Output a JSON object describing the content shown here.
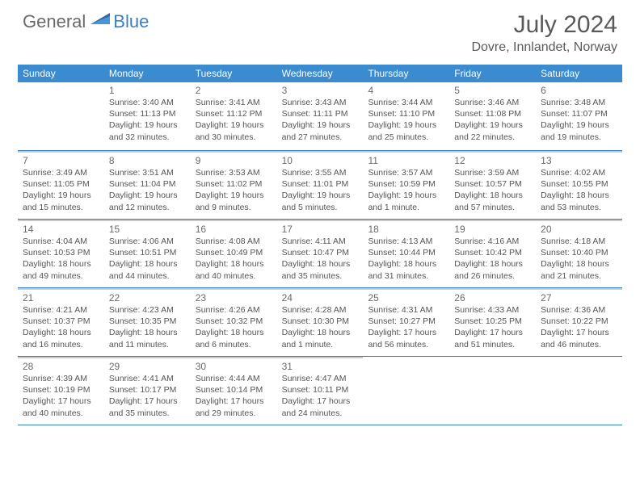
{
  "logo": {
    "general": "General",
    "blue": "Blue"
  },
  "title": "July 2024",
  "location": "Dovre, Innlandet, Norway",
  "days_of_week": [
    "Sunday",
    "Monday",
    "Tuesday",
    "Wednesday",
    "Thursday",
    "Friday",
    "Saturday"
  ],
  "colors": {
    "header_bg": "#3a8bd0",
    "header_text": "#ffffff",
    "row_divider": "#3a7fc4",
    "cell_top": "#c9c9c9",
    "text": "#555555"
  },
  "weeks": [
    [
      {
        "n": "",
        "sr": "",
        "ss": "",
        "dl": ""
      },
      {
        "n": "1",
        "sr": "Sunrise: 3:40 AM",
        "ss": "Sunset: 11:13 PM",
        "dl": "Daylight: 19 hours and 32 minutes."
      },
      {
        "n": "2",
        "sr": "Sunrise: 3:41 AM",
        "ss": "Sunset: 11:12 PM",
        "dl": "Daylight: 19 hours and 30 minutes."
      },
      {
        "n": "3",
        "sr": "Sunrise: 3:43 AM",
        "ss": "Sunset: 11:11 PM",
        "dl": "Daylight: 19 hours and 27 minutes."
      },
      {
        "n": "4",
        "sr": "Sunrise: 3:44 AM",
        "ss": "Sunset: 11:10 PM",
        "dl": "Daylight: 19 hours and 25 minutes."
      },
      {
        "n": "5",
        "sr": "Sunrise: 3:46 AM",
        "ss": "Sunset: 11:08 PM",
        "dl": "Daylight: 19 hours and 22 minutes."
      },
      {
        "n": "6",
        "sr": "Sunrise: 3:48 AM",
        "ss": "Sunset: 11:07 PM",
        "dl": "Daylight: 19 hours and 19 minutes."
      }
    ],
    [
      {
        "n": "7",
        "sr": "Sunrise: 3:49 AM",
        "ss": "Sunset: 11:05 PM",
        "dl": "Daylight: 19 hours and 15 minutes."
      },
      {
        "n": "8",
        "sr": "Sunrise: 3:51 AM",
        "ss": "Sunset: 11:04 PM",
        "dl": "Daylight: 19 hours and 12 minutes."
      },
      {
        "n": "9",
        "sr": "Sunrise: 3:53 AM",
        "ss": "Sunset: 11:02 PM",
        "dl": "Daylight: 19 hours and 9 minutes."
      },
      {
        "n": "10",
        "sr": "Sunrise: 3:55 AM",
        "ss": "Sunset: 11:01 PM",
        "dl": "Daylight: 19 hours and 5 minutes."
      },
      {
        "n": "11",
        "sr": "Sunrise: 3:57 AM",
        "ss": "Sunset: 10:59 PM",
        "dl": "Daylight: 19 hours and 1 minute."
      },
      {
        "n": "12",
        "sr": "Sunrise: 3:59 AM",
        "ss": "Sunset: 10:57 PM",
        "dl": "Daylight: 18 hours and 57 minutes."
      },
      {
        "n": "13",
        "sr": "Sunrise: 4:02 AM",
        "ss": "Sunset: 10:55 PM",
        "dl": "Daylight: 18 hours and 53 minutes."
      }
    ],
    [
      {
        "n": "14",
        "sr": "Sunrise: 4:04 AM",
        "ss": "Sunset: 10:53 PM",
        "dl": "Daylight: 18 hours and 49 minutes."
      },
      {
        "n": "15",
        "sr": "Sunrise: 4:06 AM",
        "ss": "Sunset: 10:51 PM",
        "dl": "Daylight: 18 hours and 44 minutes."
      },
      {
        "n": "16",
        "sr": "Sunrise: 4:08 AM",
        "ss": "Sunset: 10:49 PM",
        "dl": "Daylight: 18 hours and 40 minutes."
      },
      {
        "n": "17",
        "sr": "Sunrise: 4:11 AM",
        "ss": "Sunset: 10:47 PM",
        "dl": "Daylight: 18 hours and 35 minutes."
      },
      {
        "n": "18",
        "sr": "Sunrise: 4:13 AM",
        "ss": "Sunset: 10:44 PM",
        "dl": "Daylight: 18 hours and 31 minutes."
      },
      {
        "n": "19",
        "sr": "Sunrise: 4:16 AM",
        "ss": "Sunset: 10:42 PM",
        "dl": "Daylight: 18 hours and 26 minutes."
      },
      {
        "n": "20",
        "sr": "Sunrise: 4:18 AM",
        "ss": "Sunset: 10:40 PM",
        "dl": "Daylight: 18 hours and 21 minutes."
      }
    ],
    [
      {
        "n": "21",
        "sr": "Sunrise: 4:21 AM",
        "ss": "Sunset: 10:37 PM",
        "dl": "Daylight: 18 hours and 16 minutes."
      },
      {
        "n": "22",
        "sr": "Sunrise: 4:23 AM",
        "ss": "Sunset: 10:35 PM",
        "dl": "Daylight: 18 hours and 11 minutes."
      },
      {
        "n": "23",
        "sr": "Sunrise: 4:26 AM",
        "ss": "Sunset: 10:32 PM",
        "dl": "Daylight: 18 hours and 6 minutes."
      },
      {
        "n": "24",
        "sr": "Sunrise: 4:28 AM",
        "ss": "Sunset: 10:30 PM",
        "dl": "Daylight: 18 hours and 1 minute."
      },
      {
        "n": "25",
        "sr": "Sunrise: 4:31 AM",
        "ss": "Sunset: 10:27 PM",
        "dl": "Daylight: 17 hours and 56 minutes."
      },
      {
        "n": "26",
        "sr": "Sunrise: 4:33 AM",
        "ss": "Sunset: 10:25 PM",
        "dl": "Daylight: 17 hours and 51 minutes."
      },
      {
        "n": "27",
        "sr": "Sunrise: 4:36 AM",
        "ss": "Sunset: 10:22 PM",
        "dl": "Daylight: 17 hours and 46 minutes."
      }
    ],
    [
      {
        "n": "28",
        "sr": "Sunrise: 4:39 AM",
        "ss": "Sunset: 10:19 PM",
        "dl": "Daylight: 17 hours and 40 minutes."
      },
      {
        "n": "29",
        "sr": "Sunrise: 4:41 AM",
        "ss": "Sunset: 10:17 PM",
        "dl": "Daylight: 17 hours and 35 minutes."
      },
      {
        "n": "30",
        "sr": "Sunrise: 4:44 AM",
        "ss": "Sunset: 10:14 PM",
        "dl": "Daylight: 17 hours and 29 minutes."
      },
      {
        "n": "31",
        "sr": "Sunrise: 4:47 AM",
        "ss": "Sunset: 10:11 PM",
        "dl": "Daylight: 17 hours and 24 minutes."
      },
      {
        "n": "",
        "sr": "",
        "ss": "",
        "dl": ""
      },
      {
        "n": "",
        "sr": "",
        "ss": "",
        "dl": ""
      },
      {
        "n": "",
        "sr": "",
        "ss": "",
        "dl": ""
      }
    ]
  ]
}
